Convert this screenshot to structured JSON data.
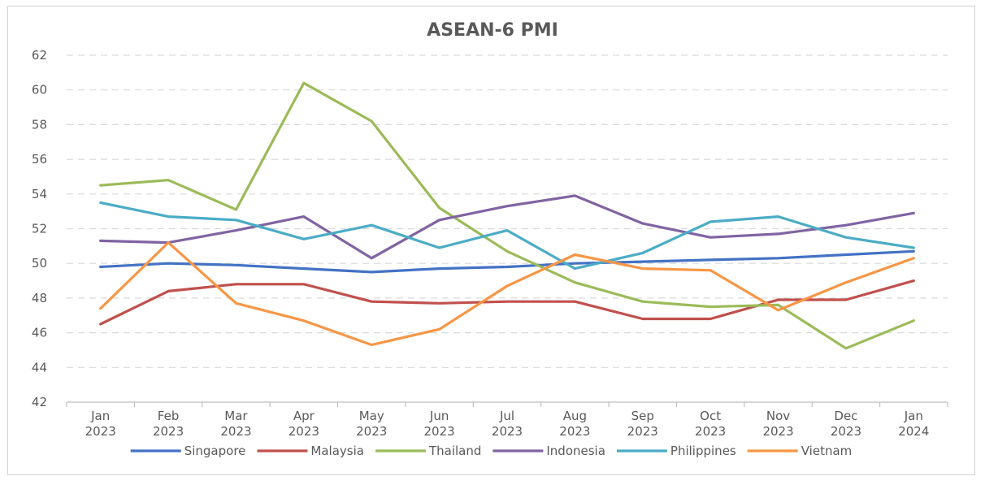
{
  "chart_data": {
    "type": "line",
    "title": "ASEAN-6 PMI",
    "xlabel": "",
    "ylabel": "",
    "ylim": [
      42,
      62
    ],
    "yticks": [
      42,
      44,
      46,
      48,
      50,
      52,
      54,
      56,
      58,
      60,
      62
    ],
    "grid": "horizontal dashed",
    "legend_position": "bottom",
    "categories": [
      [
        "Jan",
        "2023"
      ],
      [
        "Feb",
        "2023"
      ],
      [
        "Mar",
        "2023"
      ],
      [
        "Apr",
        "2023"
      ],
      [
        "May",
        "2023"
      ],
      [
        "Jun",
        "2023"
      ],
      [
        "Jul",
        "2023"
      ],
      [
        "Aug",
        "2023"
      ],
      [
        "Sep",
        "2023"
      ],
      [
        "Oct",
        "2023"
      ],
      [
        "Nov",
        "2023"
      ],
      [
        "Dec",
        "2023"
      ],
      [
        "Jan",
        "2024"
      ]
    ],
    "series": [
      {
        "name": "Singapore",
        "color": "#4472C4",
        "values": [
          49.8,
          50.0,
          49.9,
          49.7,
          49.5,
          49.7,
          49.8,
          50.0,
          50.1,
          50.2,
          50.3,
          50.5,
          50.7
        ]
      },
      {
        "name": "Malaysia",
        "color": "#C0504D",
        "values": [
          46.5,
          48.4,
          48.8,
          48.8,
          47.8,
          47.7,
          47.8,
          47.8,
          46.8,
          46.8,
          47.9,
          47.9,
          49.0
        ]
      },
      {
        "name": "Thailand",
        "color": "#9BBB59",
        "values": [
          54.5,
          54.8,
          53.1,
          60.4,
          58.2,
          53.2,
          50.7,
          48.9,
          47.8,
          47.5,
          47.6,
          45.1,
          46.7
        ]
      },
      {
        "name": "Indonesia",
        "color": "#8064A2",
        "values": [
          51.3,
          51.2,
          51.9,
          52.7,
          50.3,
          52.5,
          53.3,
          53.9,
          52.3,
          51.5,
          51.7,
          52.2,
          52.9
        ]
      },
      {
        "name": "Philippines",
        "color": "#4BACC6",
        "values": [
          53.5,
          52.7,
          52.5,
          51.4,
          52.2,
          50.9,
          51.9,
          49.7,
          50.6,
          52.4,
          52.7,
          51.5,
          50.9
        ]
      },
      {
        "name": "Vietnam",
        "color": "#F79646",
        "values": [
          47.4,
          51.2,
          47.7,
          46.7,
          45.3,
          46.2,
          48.7,
          50.5,
          49.7,
          49.6,
          47.3,
          48.9,
          50.3
        ]
      }
    ]
  }
}
